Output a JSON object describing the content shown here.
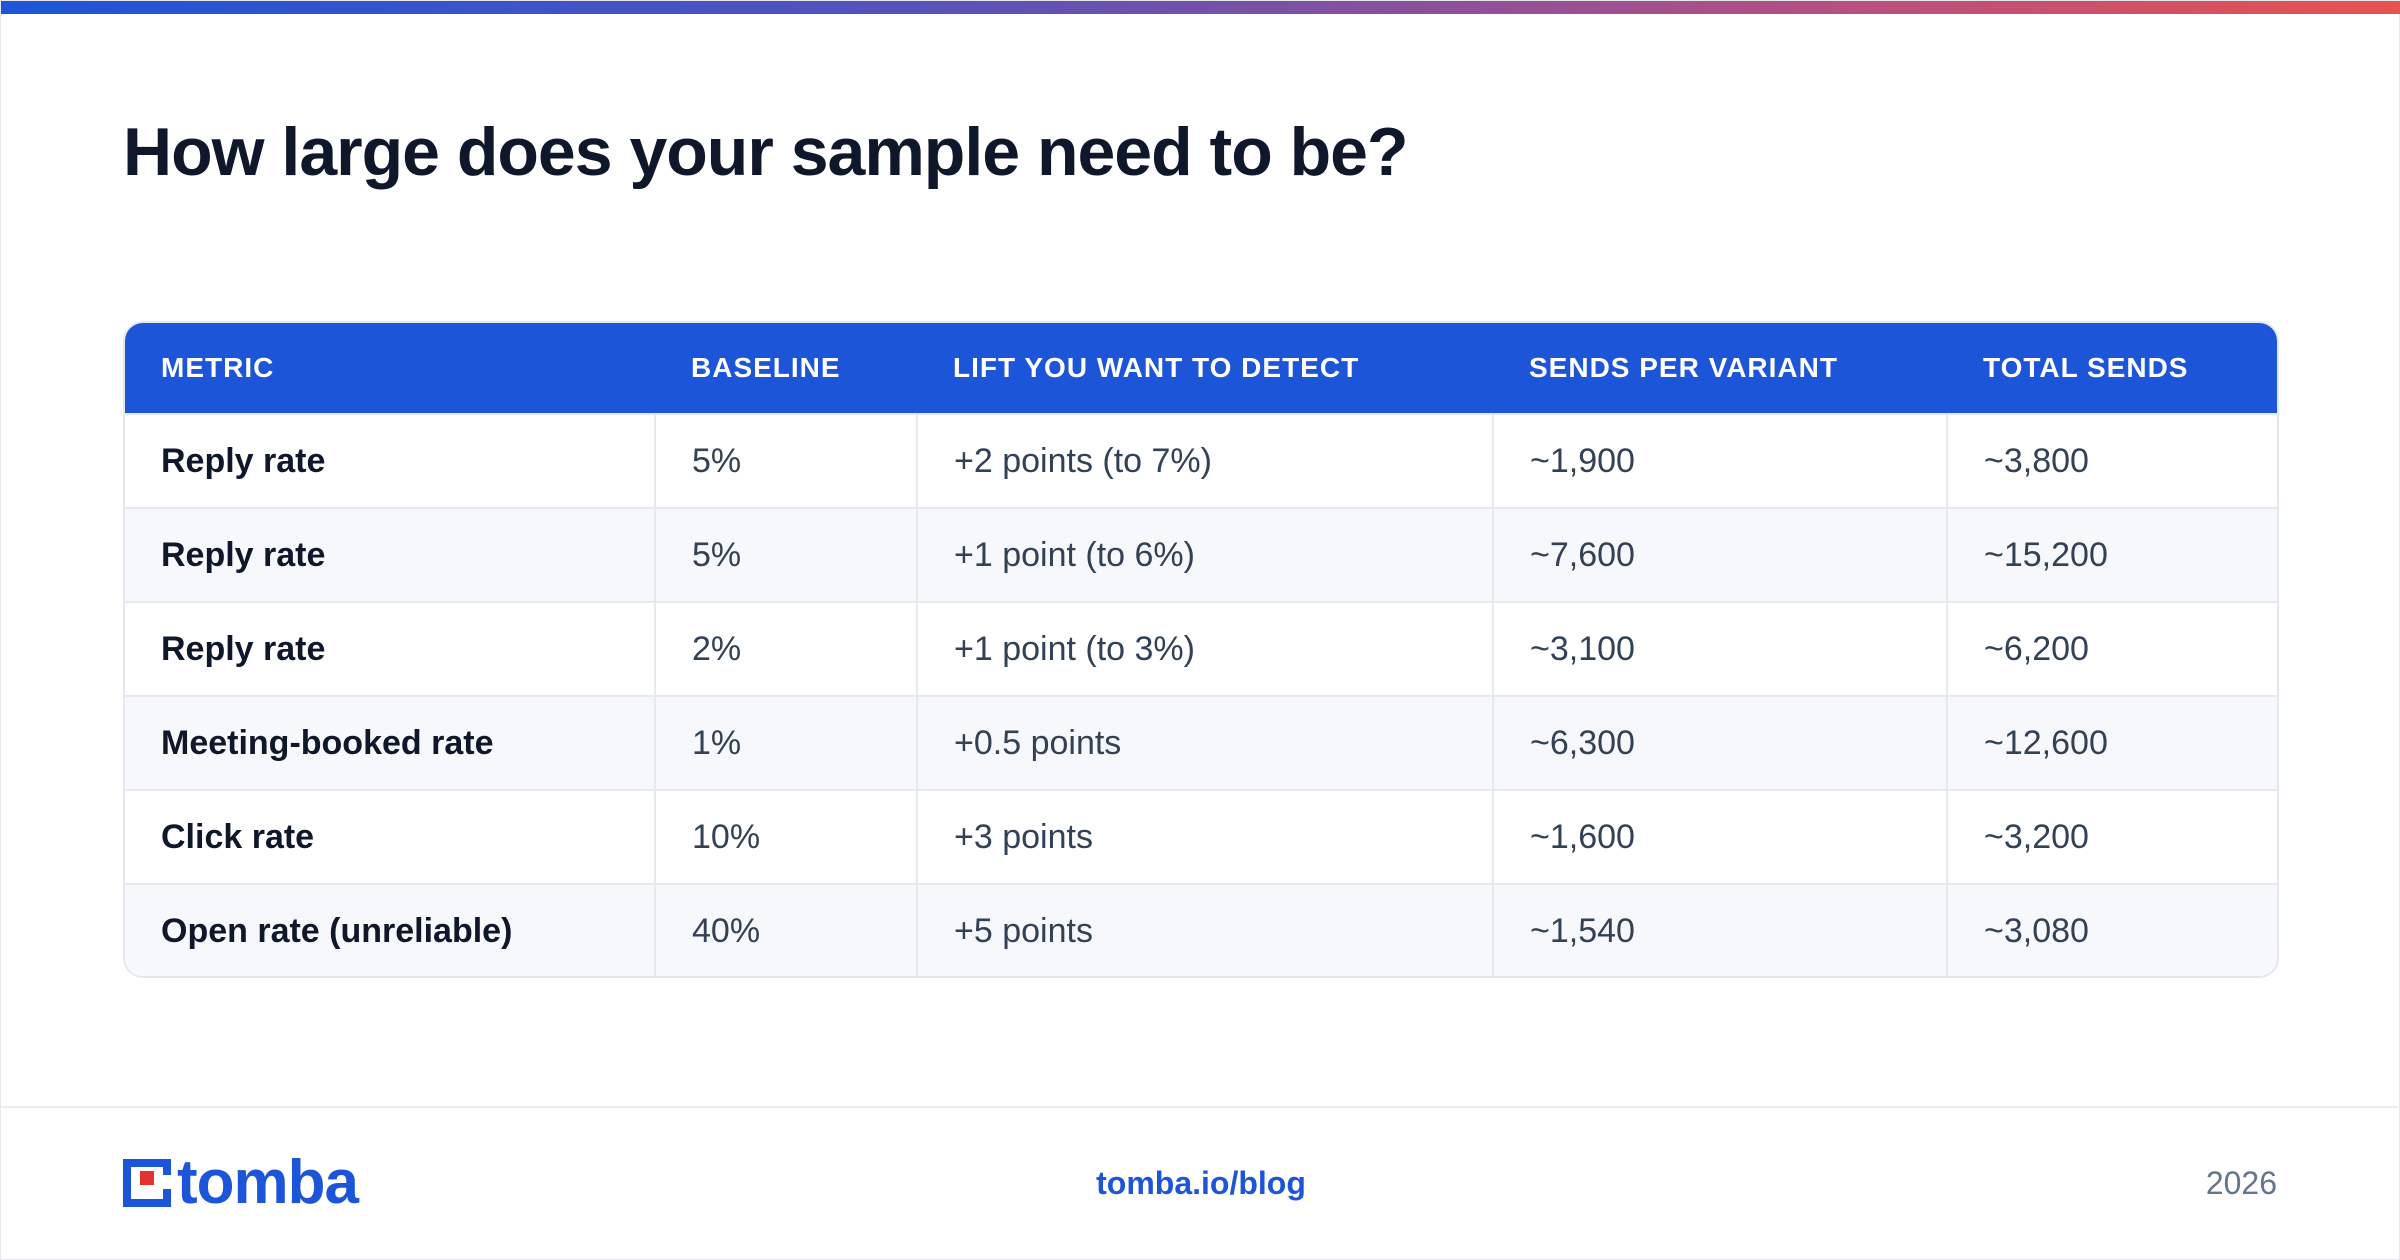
{
  "title": "How large does your sample need to be?",
  "table": {
    "headers": [
      "METRIC",
      "BASELINE",
      "LIFT YOU WANT TO DETECT",
      "SENDS PER VARIANT",
      "TOTAL SENDS"
    ],
    "rows": [
      [
        "Reply rate",
        "5%",
        "+2 points (to 7%)",
        "~1,900",
        "~3,800"
      ],
      [
        "Reply rate",
        "5%",
        "+1 point (to 6%)",
        "~7,600",
        "~15,200"
      ],
      [
        "Reply rate",
        "2%",
        "+1 point (to 3%)",
        "~3,100",
        "~6,200"
      ],
      [
        "Meeting-booked rate",
        "1%",
        "+0.5 points",
        "~6,300",
        "~12,600"
      ],
      [
        "Click rate",
        "10%",
        "+3 points",
        "~1,600",
        "~3,200"
      ],
      [
        "Open rate (unreliable)",
        "40%",
        "+5 points",
        "~1,540",
        "~3,080"
      ]
    ]
  },
  "footer": {
    "logo_text": "tomba",
    "link": "tomba.io/blog",
    "year": "2026"
  },
  "colors": {
    "brand_blue": "#1d55d9",
    "logo_red": "#e5322d",
    "title_text": "#0f172a"
  },
  "icons": {
    "logo": "tomba-logo-mark"
  }
}
